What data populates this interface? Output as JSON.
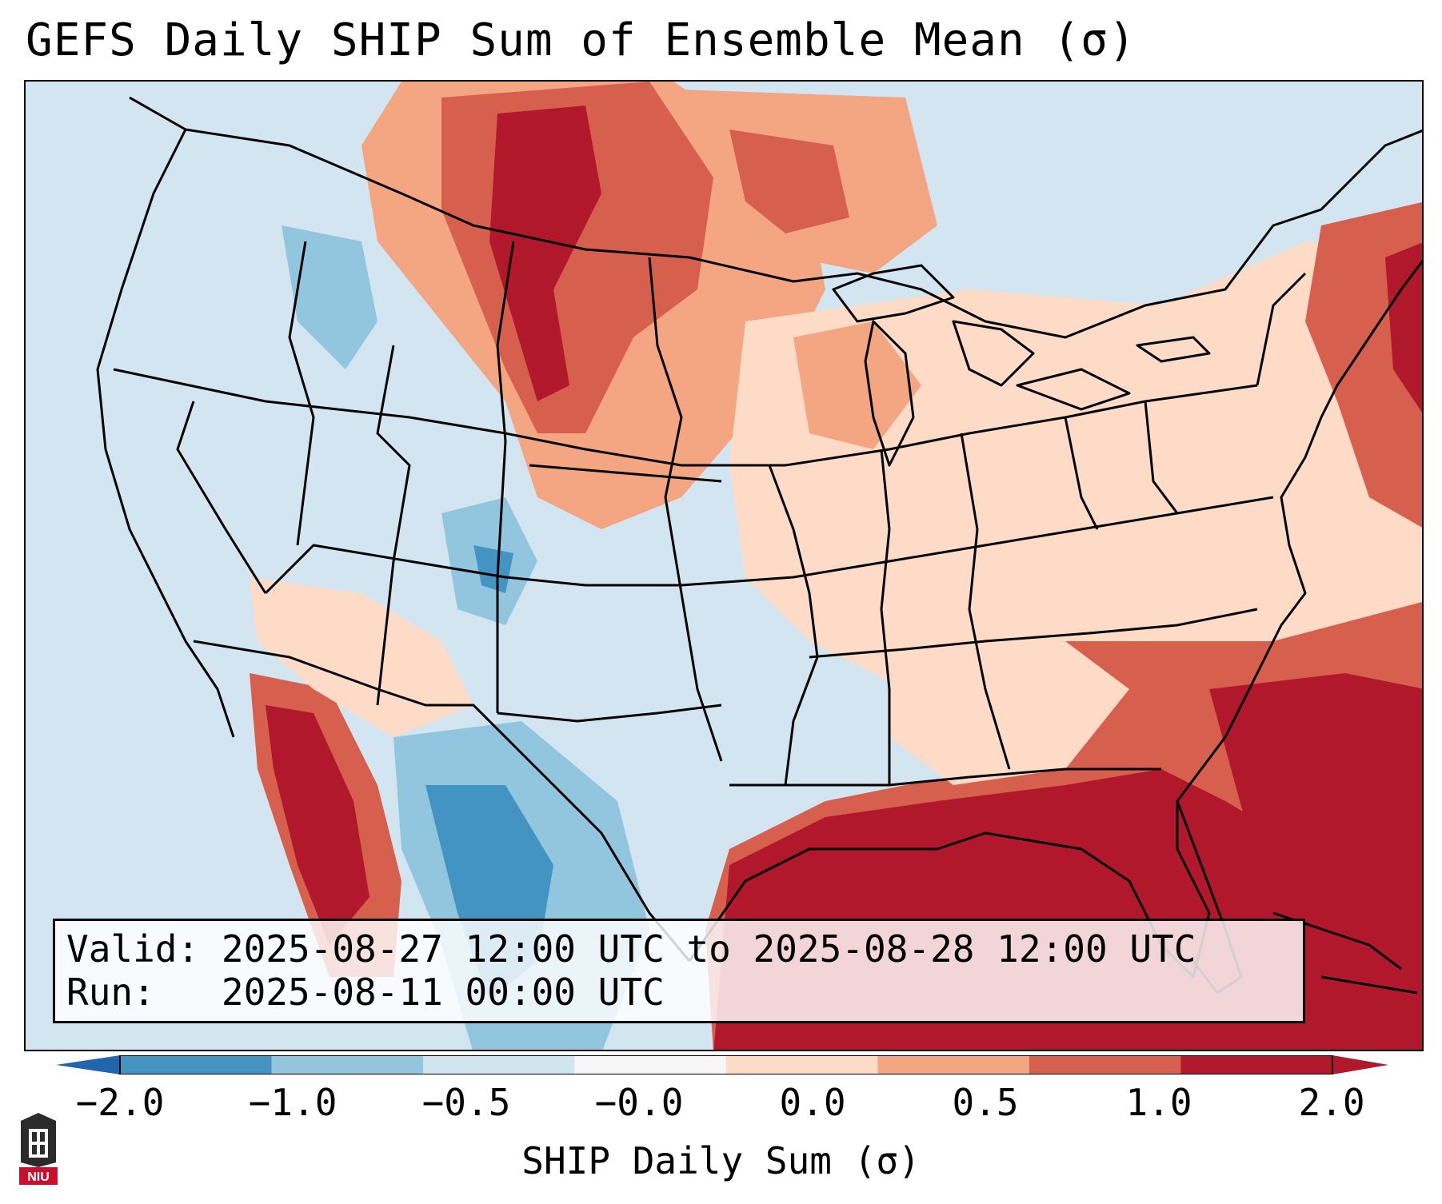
{
  "title": "GEFS Daily SHIP Sum of Ensemble Mean (σ)",
  "valid_label": "Valid:",
  "valid_value": "2025-08-27 12:00 UTC to 2025-08-28 12:00 UTC",
  "run_label": "Run:",
  "run_value": "2025-08-11 00:00 UTC",
  "colorbar": {
    "label": "SHIP Daily Sum (σ)",
    "ticks": [
      "−2.0",
      "−1.0",
      "−0.5",
      "−0.0",
      "0.0",
      "0.5",
      "1.0",
      "2.0"
    ],
    "colors": [
      "#4393c3",
      "#92c5de",
      "#d1e5f0",
      "#f7f7f7",
      "#fddbc7",
      "#f4a582",
      "#d6604d",
      "#b2182b"
    ],
    "under_color": "#2166ac",
    "over_color": "#b2182b"
  },
  "logo": {
    "text": "NIU",
    "icon": "university-seal-icon"
  },
  "map": {
    "region": "Contiguous United States",
    "field": "SHIP daily sum anomaly",
    "colors": {
      "background": "#d3e5f1",
      "outline": "#000000"
    }
  }
}
